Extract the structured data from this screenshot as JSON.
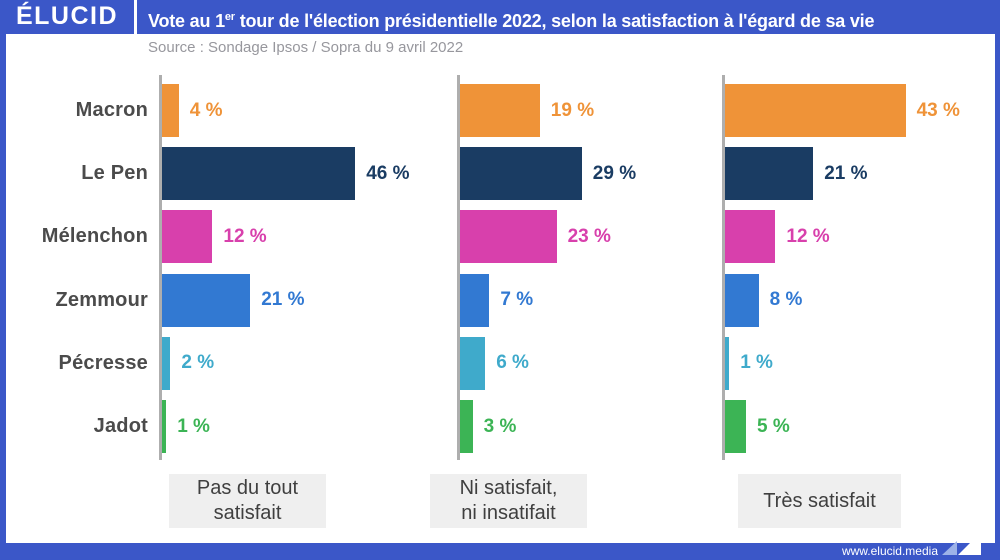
{
  "header": {
    "logo": "ÉLUCID",
    "title_prefix": "Vote au 1",
    "title_sup": "er",
    "title_suffix": " tour de l'élection présidentielle 2022, selon la satisfaction à l'égard de sa vie"
  },
  "source": "Source : Sondage Ipsos / Sopra du 9 avril 2022",
  "footer": {
    "url": "www.elucid.media"
  },
  "colors": {
    "frame_blue": "#3B57C8",
    "axis_gray": "#AEAEAE",
    "candidate_label_gray": "#4B4B4B",
    "source_gray": "#97979D",
    "box_bg": "#EFEFEF",
    "box_text": "#3F3F3F"
  },
  "chart_data": {
    "type": "bar",
    "orientation": "horizontal",
    "unit": "%",
    "value_suffix": " %",
    "xlim": [
      0,
      50
    ],
    "grid": false,
    "candidates": [
      "Macron",
      "Le Pen",
      "Mélenchon",
      "Zemmour",
      "Pécresse",
      "Jadot"
    ],
    "bar_colors": [
      "#EF9338",
      "#1A3C63",
      "#D840AC",
      "#3279D2",
      "#3FAACB",
      "#3CB455"
    ],
    "panels": [
      {
        "label_lines": [
          "Pas du tout",
          "satisfait"
        ],
        "values": [
          4,
          46,
          12,
          21,
          2,
          1
        ]
      },
      {
        "label_lines": [
          "Ni satisfait,",
          "ni insatifait"
        ],
        "values": [
          19,
          29,
          23,
          7,
          6,
          3
        ]
      },
      {
        "label_lines": [
          "Très satisfait"
        ],
        "values": [
          43,
          21,
          12,
          8,
          1,
          5
        ]
      }
    ]
  }
}
